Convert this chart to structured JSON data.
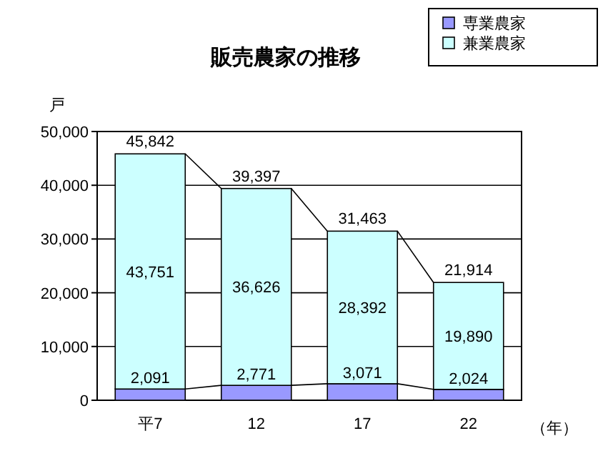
{
  "chart_data": {
    "type": "bar",
    "title": "販売農家の推移",
    "ylabel": "戸",
    "xlabel": "（年）",
    "categories": [
      "平7",
      "12",
      "17",
      "22"
    ],
    "stacked": true,
    "ylim": [
      0,
      50000
    ],
    "yticks": [
      {
        "value": 0,
        "label": "0"
      },
      {
        "value": 10000,
        "label": "10,000"
      },
      {
        "value": 20000,
        "label": "20,000"
      },
      {
        "value": 30000,
        "label": "30,000"
      },
      {
        "value": 40000,
        "label": "40,000"
      },
      {
        "value": 50000,
        "label": "50,000"
      }
    ],
    "grid": "y",
    "legend": "top right",
    "series": [
      {
        "name": "専業農家",
        "color": "#9999ff",
        "values": [
          2091,
          2771,
          3071,
          2024
        ],
        "value_labels": [
          "2,091",
          "2,771",
          "3,071",
          "2,024"
        ]
      },
      {
        "name": "兼業農家",
        "color": "#ccffff",
        "values": [
          43751,
          36626,
          28392,
          19890
        ],
        "value_labels": [
          "43,751",
          "36,626",
          "28,392",
          "19,890"
        ]
      }
    ],
    "totals": [
      "45,842",
      "39,397",
      "31,463",
      "21,914"
    ]
  }
}
